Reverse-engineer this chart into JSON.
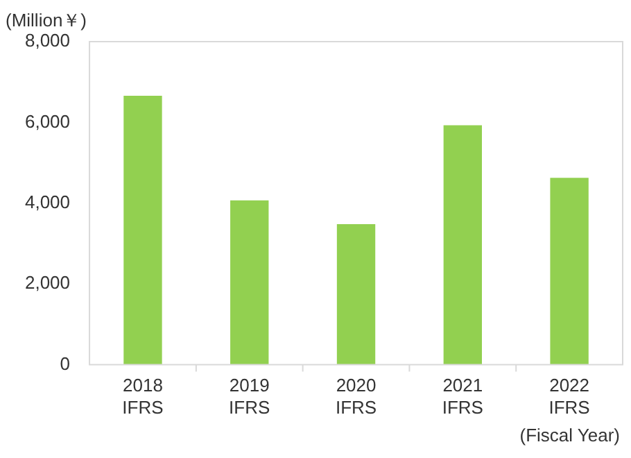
{
  "chart_data": {
    "type": "bar",
    "ylabel": "(Million￥)",
    "xlabel": "(Fiscal Year)",
    "categories": [
      "2018\nIFRS",
      "2019\nIFRS",
      "2020\nIFRS",
      "2021\nIFRS",
      "2022\nIFRS"
    ],
    "values": [
      6660,
      4070,
      3480,
      5930,
      4630
    ],
    "color": "#92d050",
    "ylim": [
      0,
      8000
    ],
    "yticks": [
      {
        "value": 0,
        "label": "0"
      },
      {
        "value": 2000,
        "label": "2,000"
      },
      {
        "value": 4000,
        "label": "4,000"
      },
      {
        "value": 6000,
        "label": "6,000"
      },
      {
        "value": 8000,
        "label": "8,000"
      }
    ],
    "grid": false
  }
}
